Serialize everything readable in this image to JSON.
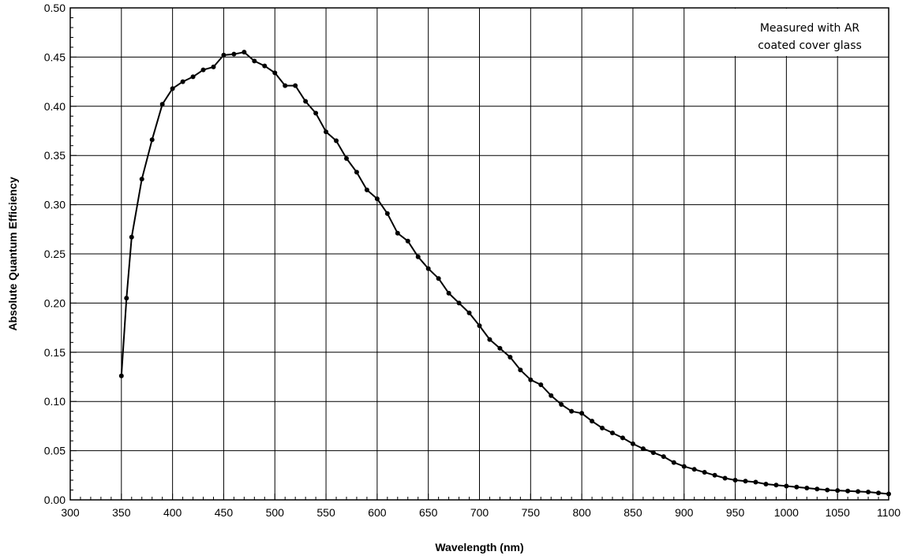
{
  "chart_data": {
    "type": "line",
    "xlabel": "Wavelength (nm)",
    "ylabel": "Absolute Quantum Efficiency",
    "xlim": [
      300,
      1100
    ],
    "ylim": [
      0,
      0.5
    ],
    "x_ticks": [
      300,
      350,
      400,
      450,
      500,
      550,
      600,
      650,
      700,
      750,
      800,
      850,
      900,
      950,
      1000,
      1050,
      1100
    ],
    "x_tick_labels": [
      "300",
      "350",
      "400",
      "450",
      "500",
      "550",
      "600",
      "650",
      "700",
      "750",
      "800",
      "850",
      "900",
      "950",
      "1000",
      "1050",
      "1100"
    ],
    "y_ticks": [
      0,
      0.05,
      0.1,
      0.15,
      0.2,
      0.25,
      0.3,
      0.35,
      0.4,
      0.45,
      0.5
    ],
    "y_tick_labels": [
      "0.00",
      "0.05",
      "0.10",
      "0.15",
      "0.20",
      "0.25",
      "0.30",
      "0.35",
      "0.40",
      "0.45",
      "0.50"
    ],
    "grid": true,
    "annotation": {
      "lines": [
        "Measured with AR",
        "coated cover glass"
      ],
      "position": "top-right"
    },
    "series": [
      {
        "color": "#000000",
        "marker": "circle",
        "x": [
          350,
          355,
          360,
          370,
          380,
          390,
          400,
          410,
          420,
          430,
          440,
          450,
          460,
          470,
          480,
          490,
          500,
          510,
          520,
          530,
          540,
          550,
          560,
          570,
          580,
          590,
          600,
          610,
          620,
          630,
          640,
          650,
          660,
          670,
          680,
          690,
          700,
          710,
          720,
          730,
          740,
          750,
          760,
          770,
          780,
          790,
          800,
          810,
          820,
          830,
          840,
          850,
          860,
          870,
          880,
          890,
          900,
          910,
          920,
          930,
          940,
          950,
          960,
          970,
          980,
          990,
          1000,
          1010,
          1020,
          1030,
          1040,
          1050,
          1060,
          1070,
          1080,
          1090,
          1100
        ],
        "y": [
          0.126,
          0.205,
          0.267,
          0.326,
          0.366,
          0.402,
          0.418,
          0.425,
          0.43,
          0.437,
          0.44,
          0.452,
          0.453,
          0.455,
          0.446,
          0.441,
          0.434,
          0.421,
          0.421,
          0.405,
          0.393,
          0.374,
          0.365,
          0.347,
          0.333,
          0.315,
          0.306,
          0.291,
          0.271,
          0.263,
          0.247,
          0.235,
          0.225,
          0.21,
          0.2,
          0.19,
          0.177,
          0.163,
          0.154,
          0.145,
          0.132,
          0.122,
          0.117,
          0.106,
          0.097,
          0.09,
          0.088,
          0.08,
          0.073,
          0.068,
          0.063,
          0.057,
          0.052,
          0.048,
          0.044,
          0.038,
          0.034,
          0.031,
          0.028,
          0.025,
          0.022,
          0.02,
          0.019,
          0.018,
          0.016,
          0.015,
          0.014,
          0.013,
          0.012,
          0.011,
          0.01,
          0.0095,
          0.009,
          0.0085,
          0.008,
          0.007,
          0.006
        ]
      }
    ]
  }
}
